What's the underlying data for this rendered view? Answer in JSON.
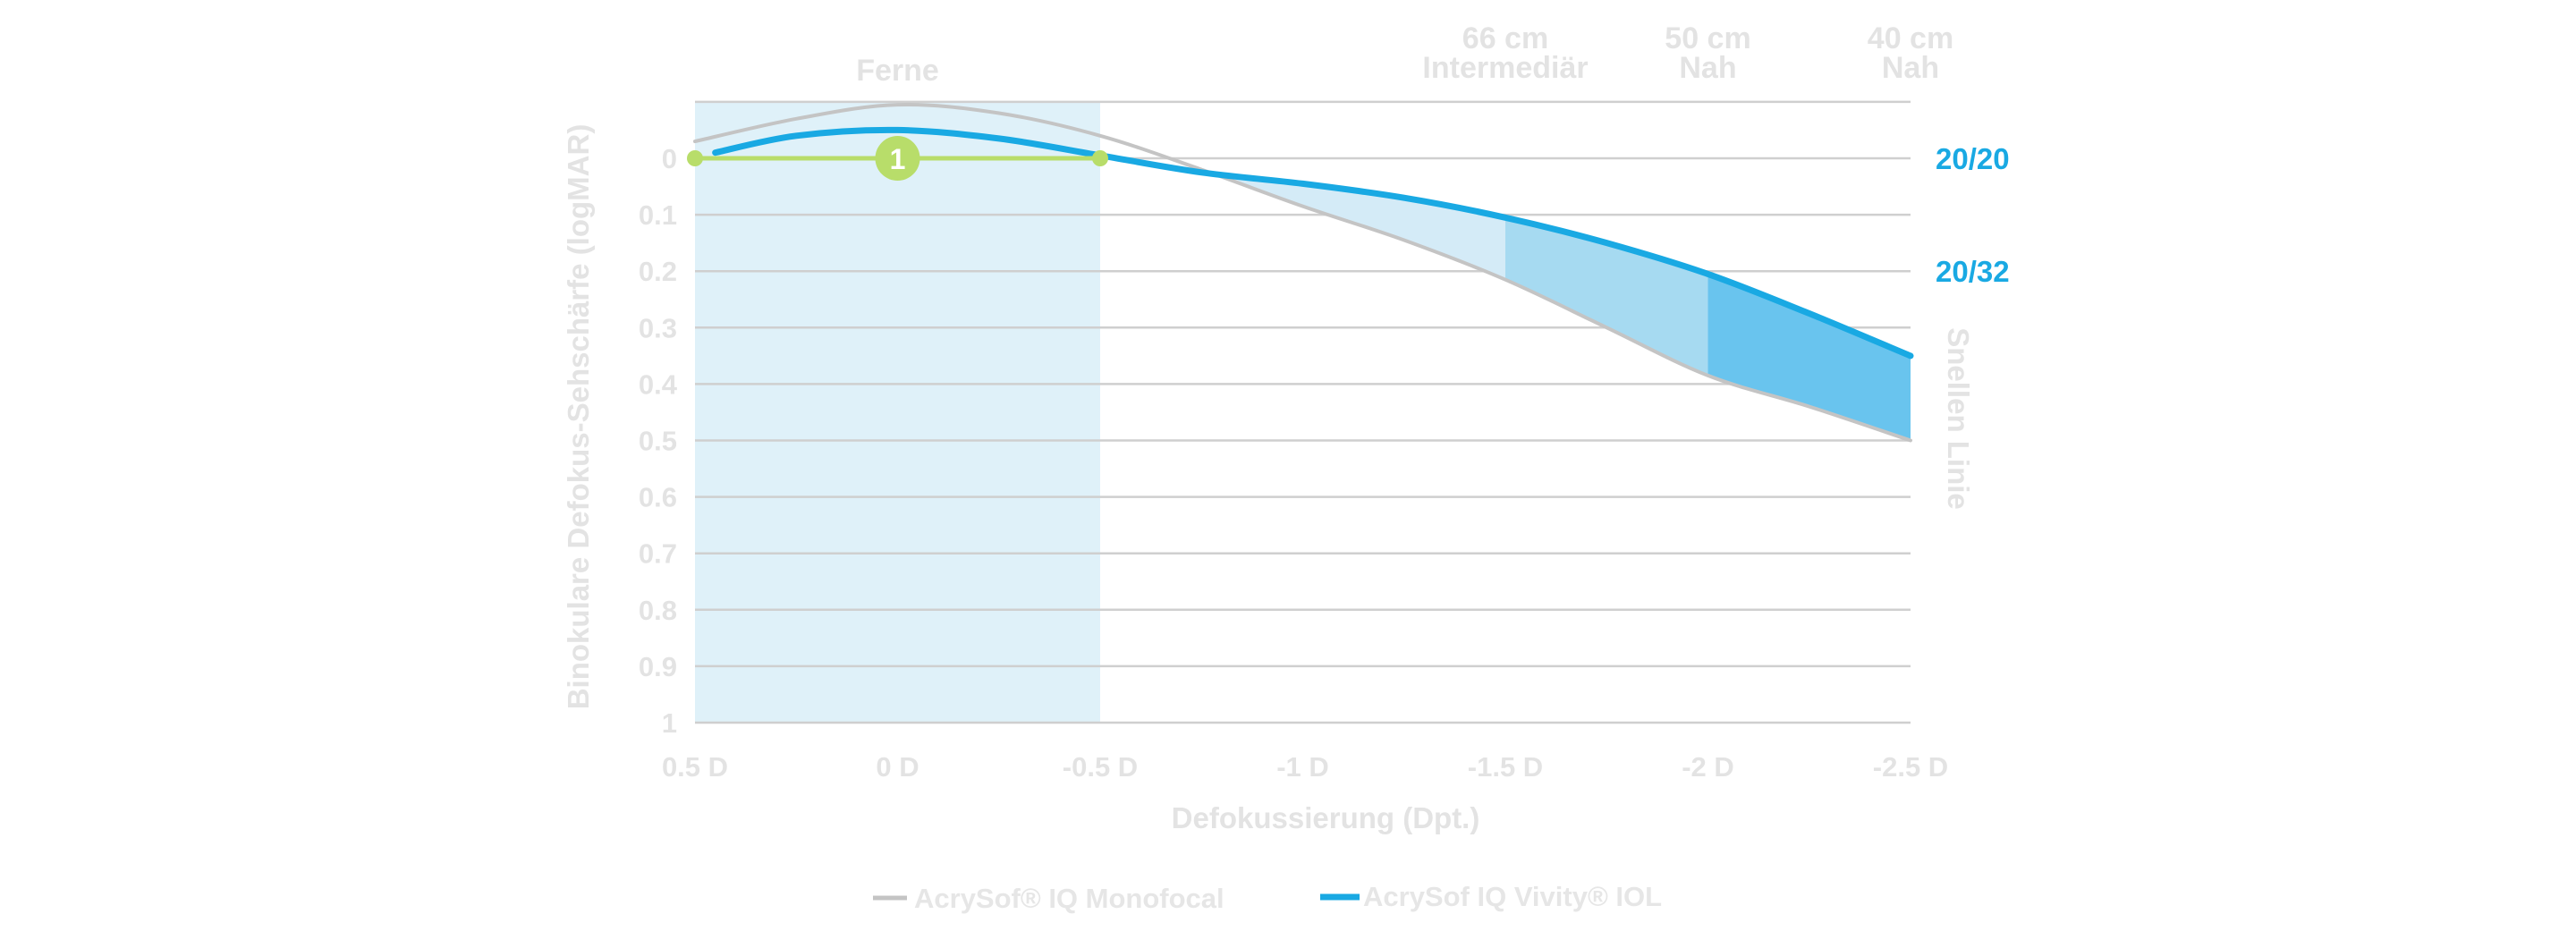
{
  "chart_data": {
    "type": "line",
    "xlabel": "Defokussierung (Dpt.)",
    "ylabel": "Binokulare Defokus-Sehschärfe (logMAR)",
    "ylabel_right": "Snellen Linie",
    "xlim": [
      0.5,
      -2.5
    ],
    "ylim": [
      -0.1,
      1.0
    ],
    "y_inverted": true,
    "grid": true,
    "x_ticks": [
      0.5,
      0,
      -0.5,
      -1,
      -1.5,
      -2,
      -2.5
    ],
    "x_tick_labels": [
      "0.5 D",
      "0 D",
      "-0.5 D",
      "-1 D",
      "-1.5 D",
      "-2 D",
      "-2.5 D"
    ],
    "y_ticks": [
      0,
      0.1,
      0.2,
      0.3,
      0.4,
      0.5,
      0.6,
      0.7,
      0.8,
      0.9,
      1
    ],
    "y_tick_labels": [
      "0",
      "0.1",
      "0.2",
      "0.3",
      "0.4",
      "0.5",
      "0.6",
      "0.7",
      "0.8",
      "0.9",
      "1"
    ],
    "snellen_labels": [
      {
        "y": 0,
        "label": "20/20"
      },
      {
        "y": 0.2,
        "label": "20/32"
      }
    ],
    "distance_labels": [
      {
        "x": 0,
        "lines": [
          "Ferne"
        ]
      },
      {
        "x": -1.5,
        "lines": [
          "66 cm",
          "Intermediär"
        ]
      },
      {
        "x": -2,
        "lines": [
          "50 cm",
          "Nah"
        ]
      },
      {
        "x": -2.5,
        "lines": [
          "40 cm",
          "Nah"
        ]
      }
    ],
    "highlight_band": {
      "x_from": 0.5,
      "x_to": -0.5,
      "color": "#dff1f9"
    },
    "marker_annotation": {
      "x_from": 0.5,
      "x_to": -0.5,
      "y": 0,
      "label": "1",
      "label_x": 0,
      "color": "#b8dd6a"
    },
    "series": [
      {
        "name": "AcrySof® IQ Monofocal",
        "color": "#c4c4c4",
        "x": [
          0.5,
          0.25,
          0,
          -0.25,
          -0.5,
          -0.75,
          -1,
          -1.25,
          -1.5,
          -1.75,
          -2,
          -2.25,
          -2.5
        ],
        "y": [
          -0.03,
          -0.07,
          -0.095,
          -0.08,
          -0.04,
          0.02,
          0.085,
          0.145,
          0.215,
          0.3,
          0.385,
          0.44,
          0.5
        ]
      },
      {
        "name": "AcrySof IQ Vivity® IOL",
        "color": "#19a9e3",
        "x": [
          0.45,
          0.25,
          0,
          -0.25,
          -0.5,
          -0.75,
          -1,
          -1.25,
          -1.5,
          -1.75,
          -2,
          -2.25,
          -2.5
        ],
        "y": [
          -0.01,
          -0.04,
          -0.05,
          -0.035,
          -0.005,
          0.025,
          0.045,
          0.07,
          0.105,
          0.15,
          0.205,
          0.275,
          0.35
        ]
      }
    ],
    "fill_regions": [
      {
        "x_from": -0.75,
        "x_to": -1.5,
        "color": "#d4ebf7"
      },
      {
        "x_from": -1.5,
        "x_to": -2,
        "color": "#a6daf1"
      },
      {
        "x_from": -2,
        "x_to": -2.5,
        "color": "#69c4ee"
      }
    ],
    "legend": {
      "position": "bottom-center"
    }
  }
}
